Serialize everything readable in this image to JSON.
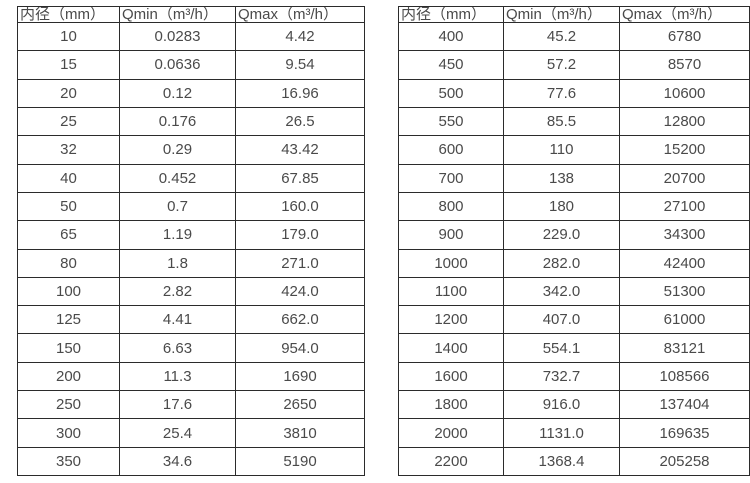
{
  "page": {
    "background_color": "#ffffff",
    "text_color": "#4a4a4a",
    "border_color": "#2b2b2b"
  },
  "tables": {
    "small_diameter": {
      "headers": [
        "内径（mm）",
        "Qmin（m³/h）",
        "Qmax（m³/h）"
      ],
      "rows": [
        [
          "10",
          "0.0283",
          "4.42"
        ],
        [
          "15",
          "0.0636",
          "9.54"
        ],
        [
          "20",
          "0.12",
          "16.96"
        ],
        [
          "25",
          "0.176",
          "26.5"
        ],
        [
          "32",
          "0.29",
          "43.42"
        ],
        [
          "40",
          "0.452",
          "67.85"
        ],
        [
          "50",
          "0.7",
          "160.0"
        ],
        [
          "65",
          "1.19",
          "179.0"
        ],
        [
          "80",
          "1.8",
          "271.0"
        ],
        [
          "100",
          "2.82",
          "424.0"
        ],
        [
          "125",
          "4.41",
          "662.0"
        ],
        [
          "150",
          "6.63",
          "954.0"
        ],
        [
          "200",
          "11.3",
          "1690"
        ],
        [
          "250",
          "17.6",
          "2650"
        ],
        [
          "300",
          "25.4",
          "3810"
        ],
        [
          "350",
          "34.6",
          "5190"
        ]
      ]
    },
    "large_diameter": {
      "headers": [
        "内径（mm）",
        "Qmin（m³/h）",
        "Qmax（m³/h）"
      ],
      "rows": [
        [
          "400",
          "45.2",
          "6780"
        ],
        [
          "450",
          "57.2",
          "8570"
        ],
        [
          "500",
          "77.6",
          "10600"
        ],
        [
          "550",
          "85.5",
          "12800"
        ],
        [
          "600",
          "110",
          "15200"
        ],
        [
          "700",
          "138",
          "20700"
        ],
        [
          "800",
          "180",
          "27100"
        ],
        [
          "900",
          "229.0",
          "34300"
        ],
        [
          "1000",
          "282.0",
          "42400"
        ],
        [
          "1100",
          "342.0",
          "51300"
        ],
        [
          "1200",
          "407.0",
          "61000"
        ],
        [
          "1400",
          "554.1",
          "83121"
        ],
        [
          "1600",
          "732.7",
          "108566"
        ],
        [
          "1800",
          "916.0",
          "137404"
        ],
        [
          "2000",
          "1131.0",
          "169635"
        ],
        [
          "2200",
          "1368.4",
          "205258"
        ]
      ]
    }
  }
}
